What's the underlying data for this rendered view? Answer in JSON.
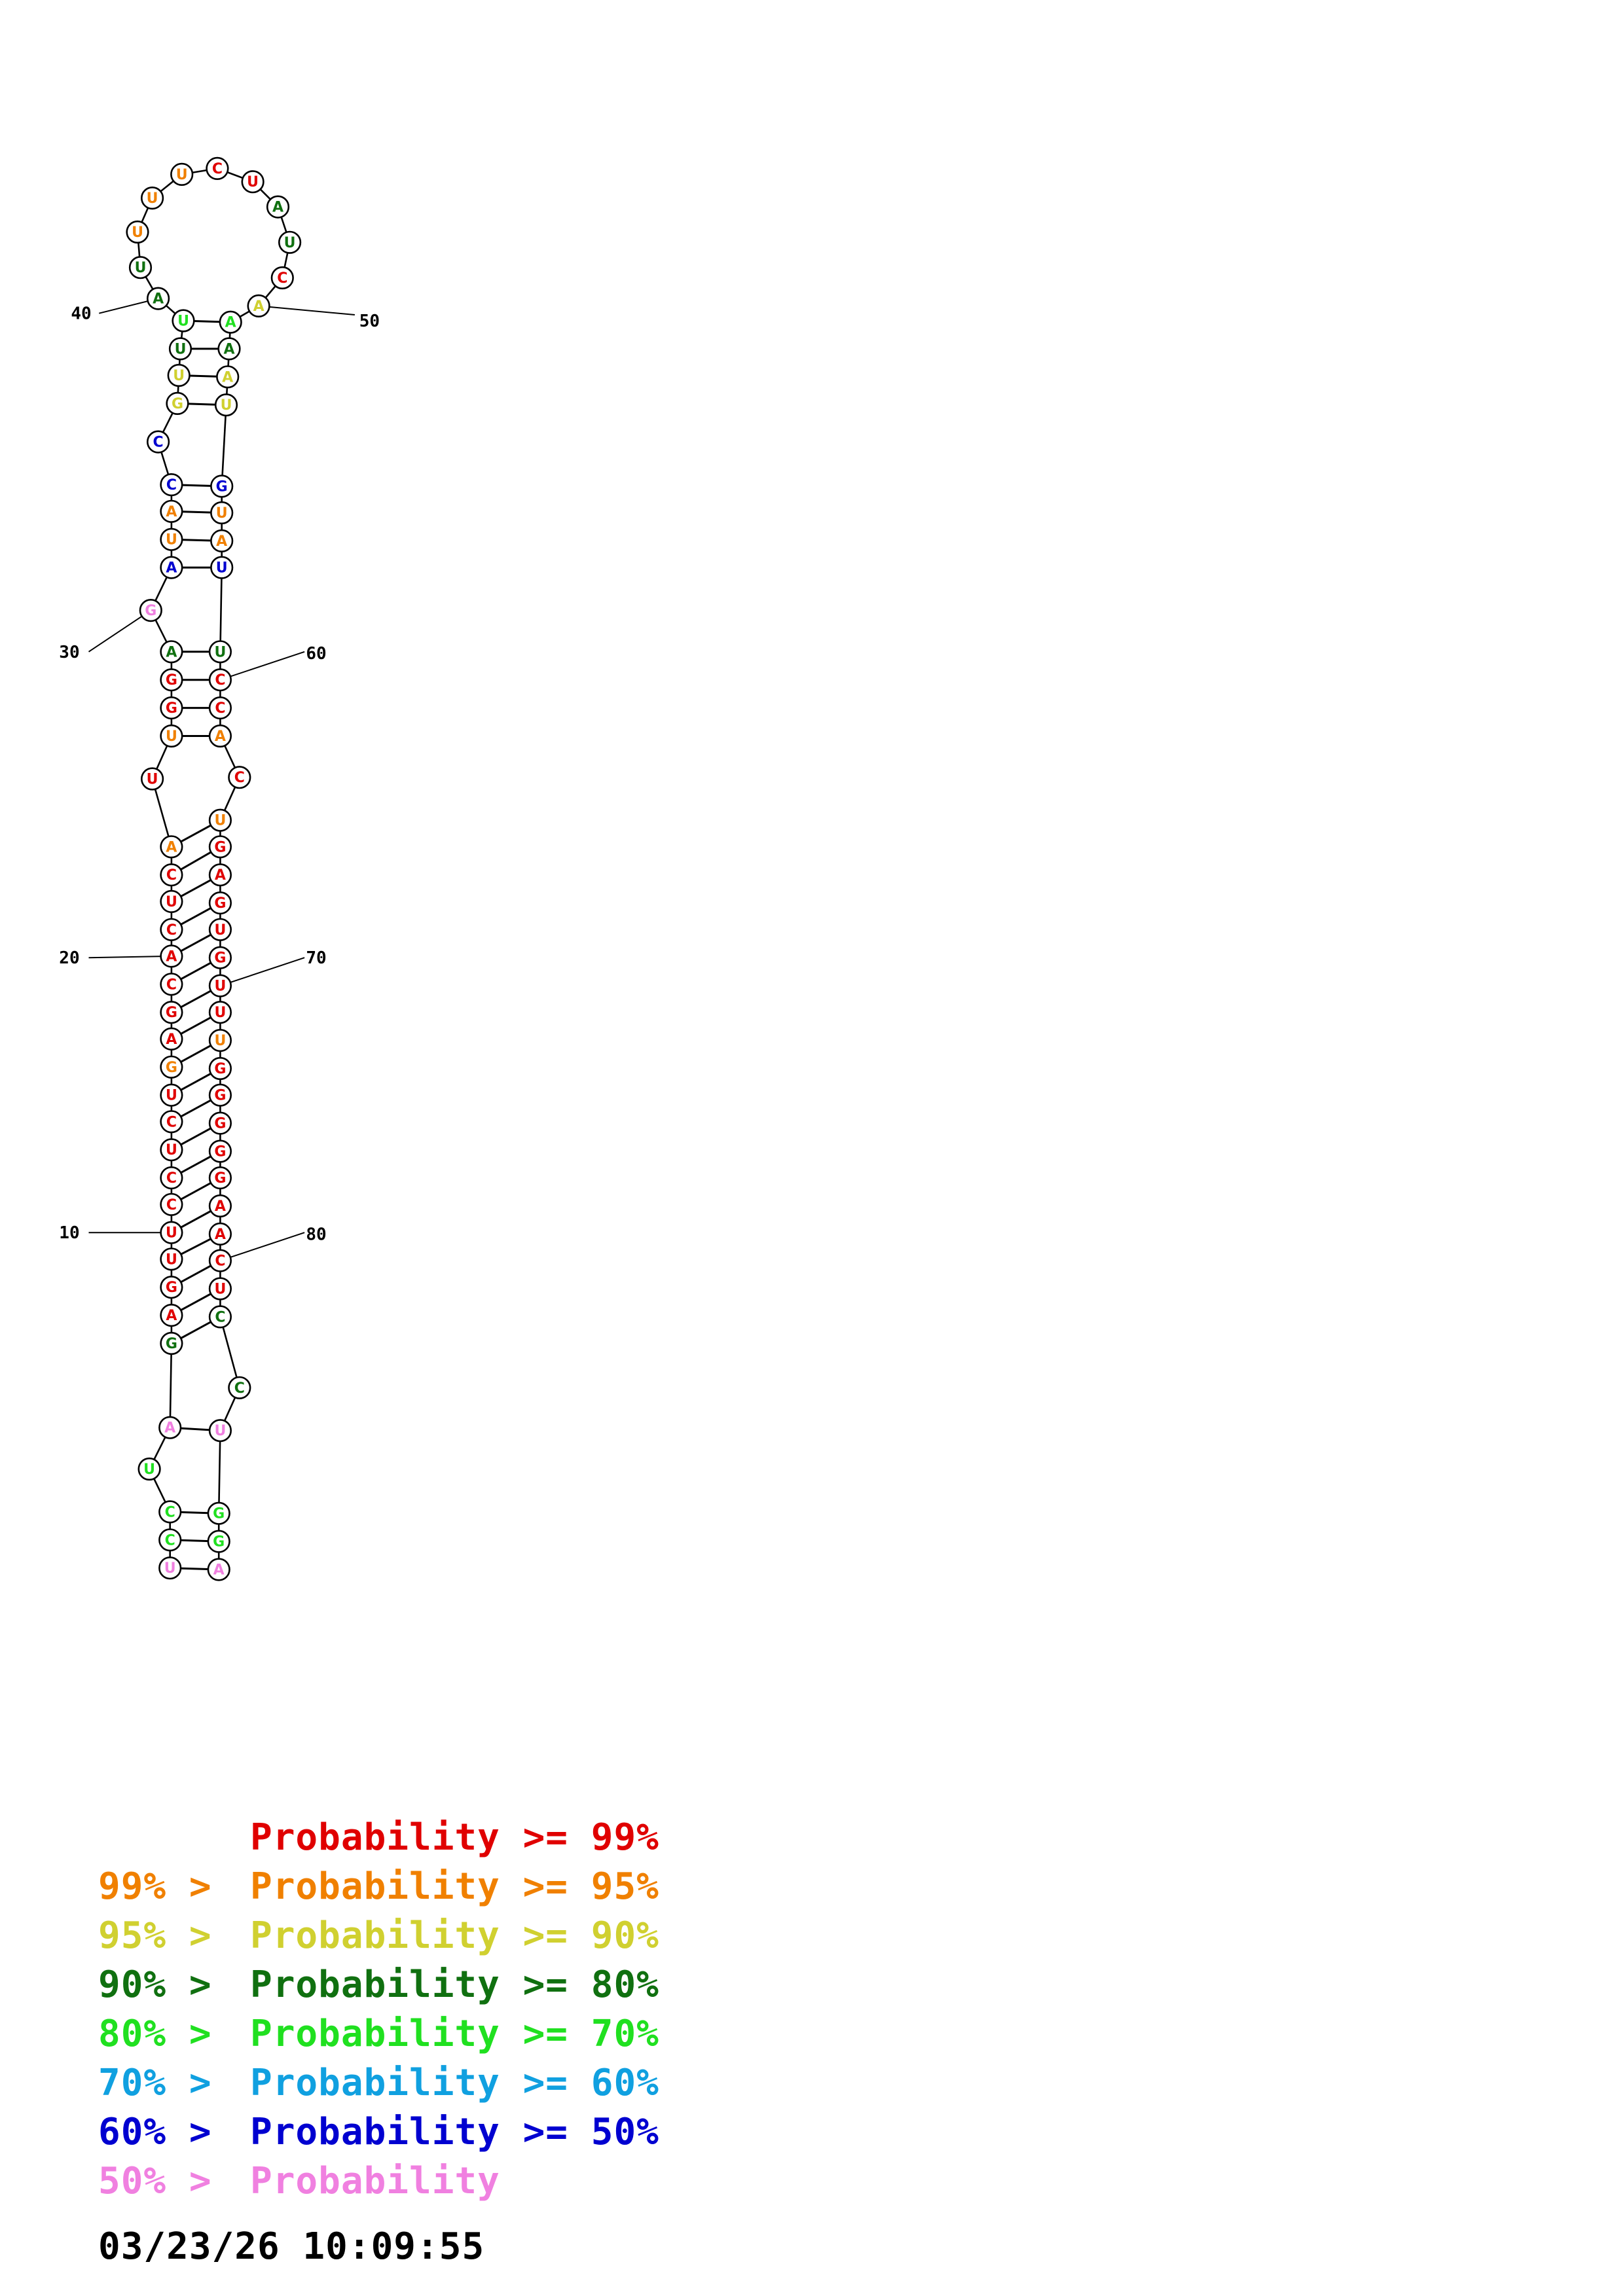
{
  "colors": {
    "c99": "#e00000",
    "c95": "#f08000",
    "c90": "#d0d030",
    "c80": "#107010",
    "c70": "#20e020",
    "c60": "#10a0e0",
    "c50": "#0000d0",
    "c0": "#f080e0"
  },
  "structure": {
    "nucleotides": [
      {
        "n": 1,
        "base": "U",
        "cls": "c0"
      },
      {
        "n": 2,
        "base": "C",
        "cls": "c70"
      },
      {
        "n": 3,
        "base": "C",
        "cls": "c70"
      },
      {
        "n": 4,
        "base": "U",
        "cls": "c70"
      },
      {
        "n": 5,
        "base": "A",
        "cls": "c0"
      },
      {
        "n": 6,
        "base": "G",
        "cls": "c80"
      },
      {
        "n": 7,
        "base": "A",
        "cls": "c99"
      },
      {
        "n": 8,
        "base": "G",
        "cls": "c99"
      },
      {
        "n": 9,
        "base": "U",
        "cls": "c99"
      },
      {
        "n": 10,
        "base": "U",
        "cls": "c99"
      },
      {
        "n": 11,
        "base": "C",
        "cls": "c99"
      },
      {
        "n": 12,
        "base": "C",
        "cls": "c99"
      },
      {
        "n": 13,
        "base": "U",
        "cls": "c99"
      },
      {
        "n": 14,
        "base": "C",
        "cls": "c99"
      },
      {
        "n": 15,
        "base": "U",
        "cls": "c99"
      },
      {
        "n": 16,
        "base": "G",
        "cls": "c95"
      },
      {
        "n": 17,
        "base": "A",
        "cls": "c99"
      },
      {
        "n": 18,
        "base": "G",
        "cls": "c99"
      },
      {
        "n": 19,
        "base": "C",
        "cls": "c99"
      },
      {
        "n": 20,
        "base": "A",
        "cls": "c99"
      },
      {
        "n": 21,
        "base": "C",
        "cls": "c99"
      },
      {
        "n": 22,
        "base": "U",
        "cls": "c99"
      },
      {
        "n": 23,
        "base": "C",
        "cls": "c99"
      },
      {
        "n": 24,
        "base": "A",
        "cls": "c95"
      },
      {
        "n": 25,
        "base": "U",
        "cls": "c99"
      },
      {
        "n": 26,
        "base": "U",
        "cls": "c95"
      },
      {
        "n": 27,
        "base": "G",
        "cls": "c99"
      },
      {
        "n": 28,
        "base": "G",
        "cls": "c99"
      },
      {
        "n": 29,
        "base": "A",
        "cls": "c80"
      },
      {
        "n": 30,
        "base": "G",
        "cls": "c0"
      },
      {
        "n": 31,
        "base": "A",
        "cls": "c50"
      },
      {
        "n": 32,
        "base": "U",
        "cls": "c95"
      },
      {
        "n": 33,
        "base": "A",
        "cls": "c95"
      },
      {
        "n": 34,
        "base": "C",
        "cls": "c50"
      },
      {
        "n": 35,
        "base": "C",
        "cls": "c50"
      },
      {
        "n": 36,
        "base": "G",
        "cls": "c90"
      },
      {
        "n": 37,
        "base": "U",
        "cls": "c90"
      },
      {
        "n": 38,
        "base": "U",
        "cls": "c80"
      },
      {
        "n": 39,
        "base": "U",
        "cls": "c70"
      },
      {
        "n": 40,
        "base": "A",
        "cls": "c80"
      },
      {
        "n": 41,
        "base": "U",
        "cls": "c80"
      },
      {
        "n": 42,
        "base": "U",
        "cls": "c95"
      },
      {
        "n": 43,
        "base": "U",
        "cls": "c95"
      },
      {
        "n": 44,
        "base": "U",
        "cls": "c95"
      },
      {
        "n": 45,
        "base": "C",
        "cls": "c99"
      },
      {
        "n": 46,
        "base": "U",
        "cls": "c99"
      },
      {
        "n": 47,
        "base": "A",
        "cls": "c80"
      },
      {
        "n": 48,
        "base": "U",
        "cls": "c80"
      },
      {
        "n": 49,
        "base": "C",
        "cls": "c99"
      },
      {
        "n": 50,
        "base": "A",
        "cls": "c90"
      },
      {
        "n": 51,
        "base": "A",
        "cls": "c70"
      },
      {
        "n": 52,
        "base": "A",
        "cls": "c80"
      },
      {
        "n": 53,
        "base": "A",
        "cls": "c90"
      },
      {
        "n": 54,
        "base": "U",
        "cls": "c90"
      },
      {
        "n": 55,
        "base": "G",
        "cls": "c50"
      },
      {
        "n": 56,
        "base": "U",
        "cls": "c95"
      },
      {
        "n": 57,
        "base": "A",
        "cls": "c95"
      },
      {
        "n": 58,
        "base": "U",
        "cls": "c50"
      },
      {
        "n": 59,
        "base": "U",
        "cls": "c80"
      },
      {
        "n": 60,
        "base": "C",
        "cls": "c99"
      },
      {
        "n": 61,
        "base": "C",
        "cls": "c99"
      },
      {
        "n": 62,
        "base": "A",
        "cls": "c95"
      },
      {
        "n": 63,
        "base": "C",
        "cls": "c99"
      },
      {
        "n": 64,
        "base": "U",
        "cls": "c95"
      },
      {
        "n": 65,
        "base": "G",
        "cls": "c99"
      },
      {
        "n": 66,
        "base": "A",
        "cls": "c99"
      },
      {
        "n": 67,
        "base": "G",
        "cls": "c99"
      },
      {
        "n": 68,
        "base": "U",
        "cls": "c99"
      },
      {
        "n": 69,
        "base": "G",
        "cls": "c99"
      },
      {
        "n": 70,
        "base": "U",
        "cls": "c99"
      },
      {
        "n": 71,
        "base": "U",
        "cls": "c99"
      },
      {
        "n": 72,
        "base": "U",
        "cls": "c95"
      },
      {
        "n": 73,
        "base": "G",
        "cls": "c99"
      },
      {
        "n": 74,
        "base": "G",
        "cls": "c99"
      },
      {
        "n": 75,
        "base": "G",
        "cls": "c99"
      },
      {
        "n": 76,
        "base": "G",
        "cls": "c99"
      },
      {
        "n": 77,
        "base": "G",
        "cls": "c99"
      },
      {
        "n": 78,
        "base": "A",
        "cls": "c99"
      },
      {
        "n": 79,
        "base": "A",
        "cls": "c99"
      },
      {
        "n": 80,
        "base": "C",
        "cls": "c99"
      },
      {
        "n": 81,
        "base": "U",
        "cls": "c99"
      },
      {
        "n": 82,
        "base": "C",
        "cls": "c80"
      },
      {
        "n": 83,
        "base": "C",
        "cls": "c80"
      },
      {
        "n": 84,
        "base": "U",
        "cls": "c0"
      },
      {
        "n": 85,
        "base": "G",
        "cls": "c70"
      },
      {
        "n": 86,
        "base": "G",
        "cls": "c70"
      },
      {
        "n": 87,
        "base": "A",
        "cls": "c0"
      }
    ],
    "pairs": [
      [
        1,
        87
      ],
      [
        2,
        86
      ],
      [
        3,
        85
      ],
      [
        5,
        84
      ],
      [
        6,
        82
      ],
      [
        7,
        81
      ],
      [
        8,
        80
      ],
      [
        9,
        79
      ],
      [
        10,
        78
      ],
      [
        11,
        77
      ],
      [
        12,
        76
      ],
      [
        13,
        75
      ],
      [
        14,
        74
      ],
      [
        15,
        73
      ],
      [
        16,
        72
      ],
      [
        17,
        71
      ],
      [
        18,
        70
      ],
      [
        19,
        69
      ],
      [
        20,
        68
      ],
      [
        21,
        67
      ],
      [
        22,
        66
      ],
      [
        23,
        65
      ],
      [
        24,
        64
      ],
      [
        26,
        62
      ],
      [
        27,
        61
      ],
      [
        28,
        60
      ],
      [
        29,
        59
      ],
      [
        31,
        58
      ],
      [
        32,
        57
      ],
      [
        33,
        56
      ],
      [
        34,
        55
      ],
      [
        36,
        54
      ],
      [
        37,
        53
      ],
      [
        38,
        52
      ],
      [
        39,
        51
      ]
    ],
    "tick_labels": [
      {
        "n": 10,
        "label": "10"
      },
      {
        "n": 20,
        "label": "20"
      },
      {
        "n": 30,
        "label": "30"
      },
      {
        "n": 40,
        "label": "40"
      },
      {
        "n": 50,
        "label": "50"
      },
      {
        "n": 60,
        "label": "60"
      },
      {
        "n": 70,
        "label": "70"
      },
      {
        "n": 80,
        "label": "80"
      }
    ]
  },
  "legend": [
    {
      "prefix": "",
      "cls": "c99",
      "body": "Probability >= 99%"
    },
    {
      "prefix": "99% > ",
      "cls": "c95",
      "body": "Probability >= 95%"
    },
    {
      "prefix": "95% > ",
      "cls": "c90",
      "body": "Probability >= 90%"
    },
    {
      "prefix": "90% > ",
      "cls": "c80",
      "body": "Probability >= 80%"
    },
    {
      "prefix": "80% > ",
      "cls": "c70",
      "body": "Probability >= 70%"
    },
    {
      "prefix": "70% > ",
      "cls": "c60",
      "body": "Probability >= 60%"
    },
    {
      "prefix": "60% > ",
      "cls": "c50",
      "body": "Probability >= 50%"
    },
    {
      "prefix": "50% > ",
      "cls": "c0",
      "body": "Probability"
    }
  ],
  "timestamp": "03/23/26 10:09:55"
}
